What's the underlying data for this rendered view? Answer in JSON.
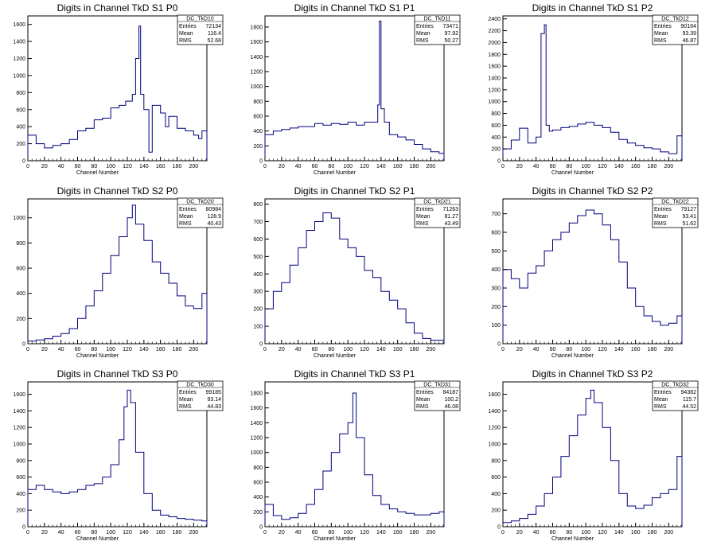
{
  "chart_data": [
    {
      "type": "histogram",
      "title": "Digits in Channel TkD S1 P0",
      "xlabel": "Channel Number",
      "ylabel": "",
      "stats": {
        "name": "DC_TkD10",
        "entries": "72134",
        "mean": "116.4",
        "rms": "52.68"
      },
      "xlim": [
        0,
        216
      ],
      "ylim": [
        0,
        1700
      ],
      "xticks": [
        "0",
        "20",
        "40",
        "60",
        "80",
        "100",
        "120",
        "140",
        "160",
        "180",
        "200"
      ],
      "yticks": [
        "0",
        "200",
        "400",
        "600",
        "800",
        "1000",
        "1200",
        "1400",
        "1600"
      ],
      "x": [
        0,
        10,
        20,
        30,
        40,
        50,
        60,
        70,
        80,
        90,
        100,
        110,
        118,
        126,
        130,
        134,
        136,
        140,
        146,
        150,
        160,
        166,
        170,
        180,
        190,
        200,
        206,
        210,
        216
      ],
      "y": [
        300,
        200,
        150,
        180,
        200,
        250,
        350,
        380,
        480,
        500,
        620,
        650,
        700,
        780,
        1200,
        1580,
        780,
        600,
        100,
        650,
        560,
        400,
        520,
        380,
        350,
        300,
        260,
        350,
        0
      ]
    },
    {
      "type": "histogram",
      "title": "Digits in Channel TkD S1 P1",
      "xlabel": "Channel Number",
      "ylabel": "",
      "stats": {
        "name": "DC_TkD11",
        "entries": "73471",
        "mean": "97.92",
        "rms": "50.27"
      },
      "xlim": [
        0,
        216
      ],
      "ylim": [
        0,
        1950
      ],
      "xticks": [
        "0",
        "20",
        "40",
        "60",
        "80",
        "100",
        "120",
        "140",
        "160",
        "180",
        "200"
      ],
      "yticks": [
        "0",
        "200",
        "400",
        "600",
        "800",
        "1000",
        "1200",
        "1400",
        "1600",
        "1800"
      ],
      "x": [
        0,
        10,
        20,
        30,
        40,
        50,
        60,
        70,
        80,
        90,
        100,
        110,
        120,
        130,
        136,
        138,
        140,
        144,
        150,
        160,
        170,
        180,
        190,
        200,
        210,
        216
      ],
      "y": [
        350,
        400,
        420,
        440,
        460,
        460,
        500,
        480,
        500,
        490,
        520,
        480,
        520,
        520,
        750,
        1880,
        700,
        520,
        350,
        320,
        280,
        220,
        160,
        120,
        100,
        0
      ]
    },
    {
      "type": "histogram",
      "title": "Digits in Channel TkD S1 P2",
      "xlabel": "Channel Number",
      "ylabel": "",
      "stats": {
        "name": "DC_TkD12",
        "entries": "90164",
        "mean": "93.39",
        "rms": "46.87"
      },
      "xlim": [
        0,
        216
      ],
      "ylim": [
        0,
        2450
      ],
      "xticks": [
        "0",
        "20",
        "40",
        "60",
        "80",
        "100",
        "120",
        "140",
        "160",
        "180",
        "200"
      ],
      "yticks": [
        "0",
        "200",
        "400",
        "600",
        "800",
        "1000",
        "1200",
        "1400",
        "1600",
        "1800",
        "2000",
        "2200",
        "2400"
      ],
      "x": [
        0,
        10,
        20,
        30,
        40,
        46,
        50,
        52,
        56,
        60,
        70,
        80,
        90,
        100,
        110,
        120,
        130,
        140,
        150,
        160,
        170,
        180,
        190,
        200,
        210,
        216
      ],
      "y": [
        200,
        350,
        550,
        300,
        400,
        2150,
        2300,
        600,
        500,
        520,
        560,
        580,
        620,
        650,
        600,
        560,
        480,
        360,
        300,
        260,
        220,
        200,
        150,
        120,
        420,
        0
      ]
    },
    {
      "type": "histogram",
      "title": "Digits in Channel TkD S2 P0",
      "xlabel": "Channel Number",
      "ylabel": "",
      "stats": {
        "name": "DC_TkD20",
        "entries": "80984",
        "mean": "128.9",
        "rms": "40.43"
      },
      "xlim": [
        0,
        216
      ],
      "ylim": [
        0,
        1150
      ],
      "xticks": [
        "0",
        "20",
        "40",
        "60",
        "80",
        "100",
        "120",
        "140",
        "160",
        "180",
        "200"
      ],
      "yticks": [
        "0",
        "200",
        "400",
        "600",
        "800",
        "1000"
      ],
      "x": [
        0,
        10,
        20,
        30,
        40,
        50,
        60,
        70,
        80,
        90,
        100,
        110,
        120,
        126,
        130,
        140,
        150,
        160,
        170,
        180,
        190,
        200,
        210,
        216
      ],
      "y": [
        20,
        30,
        40,
        60,
        80,
        120,
        200,
        300,
        420,
        560,
        700,
        850,
        1000,
        1100,
        950,
        820,
        650,
        560,
        480,
        380,
        300,
        280,
        400,
        0
      ]
    },
    {
      "type": "histogram",
      "title": "Digits in Channel TkD S2 P1",
      "xlabel": "Channel Number",
      "ylabel": "",
      "stats": {
        "name": "DC_TkD21",
        "entries": "71263",
        "mean": "81.27",
        "rms": "43.49"
      },
      "xlim": [
        0,
        216
      ],
      "ylim": [
        0,
        830
      ],
      "xticks": [
        "0",
        "20",
        "40",
        "60",
        "80",
        "100",
        "120",
        "140",
        "160",
        "180",
        "200"
      ],
      "yticks": [
        "0",
        "100",
        "200",
        "300",
        "400",
        "500",
        "600",
        "700",
        "800"
      ],
      "x": [
        0,
        10,
        20,
        30,
        40,
        50,
        60,
        70,
        80,
        90,
        100,
        110,
        120,
        130,
        140,
        150,
        160,
        170,
        180,
        190,
        200,
        216
      ],
      "y": [
        200,
        300,
        350,
        450,
        550,
        650,
        700,
        750,
        720,
        600,
        550,
        500,
        420,
        380,
        300,
        250,
        200,
        120,
        60,
        30,
        20,
        0
      ]
    },
    {
      "type": "histogram",
      "title": "Digits in Channel TkD S2 P2",
      "xlabel": "Channel Number",
      "ylabel": "",
      "stats": {
        "name": "DC_TkD22",
        "entries": "79127",
        "mean": "93.41",
        "rms": "51.62"
      },
      "xlim": [
        0,
        216
      ],
      "ylim": [
        0,
        780
      ],
      "xticks": [
        "0",
        "20",
        "40",
        "60",
        "80",
        "100",
        "120",
        "140",
        "160",
        "180",
        "200"
      ],
      "yticks": [
        "0",
        "100",
        "200",
        "300",
        "400",
        "500",
        "600",
        "700"
      ],
      "x": [
        0,
        10,
        20,
        30,
        40,
        50,
        60,
        70,
        80,
        90,
        100,
        110,
        120,
        130,
        140,
        150,
        160,
        170,
        180,
        190,
        200,
        210,
        216
      ],
      "y": [
        400,
        350,
        300,
        380,
        420,
        500,
        560,
        600,
        650,
        690,
        720,
        700,
        640,
        560,
        440,
        300,
        200,
        150,
        120,
        100,
        110,
        150,
        0
      ]
    },
    {
      "type": "histogram",
      "title": "Digits in Channel TkD S3 P0",
      "xlabel": "Channel Number",
      "ylabel": "",
      "stats": {
        "name": "DC_TkD30",
        "entries": "99185",
        "mean": "93.14",
        "rms": "44.83"
      },
      "xlim": [
        0,
        216
      ],
      "ylim": [
        0,
        1750
      ],
      "xticks": [
        "0",
        "20",
        "40",
        "60",
        "80",
        "100",
        "120",
        "140",
        "160",
        "180",
        "200"
      ],
      "yticks": [
        "0",
        "200",
        "400",
        "600",
        "800",
        "1000",
        "1200",
        "1400",
        "1600"
      ],
      "x": [
        0,
        10,
        20,
        30,
        40,
        50,
        60,
        70,
        80,
        90,
        100,
        110,
        116,
        120,
        124,
        130,
        140,
        150,
        160,
        170,
        180,
        190,
        200,
        210,
        216
      ],
      "y": [
        450,
        500,
        450,
        420,
        400,
        420,
        450,
        500,
        520,
        600,
        750,
        1050,
        1450,
        1650,
        1500,
        900,
        400,
        200,
        140,
        120,
        100,
        90,
        80,
        70,
        0
      ]
    },
    {
      "type": "histogram",
      "title": "Digits in Channel TkD S3 P1",
      "xlabel": "Channel Number",
      "ylabel": "",
      "stats": {
        "name": "DC_TkD31",
        "entries": "84187",
        "mean": "100.2",
        "rms": "46.08"
      },
      "xlim": [
        0,
        216
      ],
      "ylim": [
        0,
        1950
      ],
      "xticks": [
        "0",
        "20",
        "40",
        "60",
        "80",
        "100",
        "120",
        "140",
        "160",
        "180",
        "200"
      ],
      "yticks": [
        "0",
        "200",
        "400",
        "600",
        "800",
        "1000",
        "1200",
        "1400",
        "1600",
        "1800"
      ],
      "x": [
        0,
        10,
        20,
        30,
        40,
        50,
        60,
        70,
        80,
        90,
        100,
        106,
        110,
        120,
        130,
        140,
        150,
        160,
        170,
        180,
        190,
        200,
        210,
        216
      ],
      "y": [
        300,
        150,
        100,
        120,
        180,
        300,
        500,
        750,
        1000,
        1250,
        1400,
        1800,
        1200,
        700,
        420,
        300,
        240,
        200,
        180,
        160,
        160,
        180,
        200,
        0
      ]
    },
    {
      "type": "histogram",
      "title": "Digits in Channel TkD S3 P2",
      "xlabel": "Channel Number",
      "ylabel": "",
      "stats": {
        "name": "DC_TkD32",
        "entries": "94382",
        "mean": "115.7",
        "rms": "44.52"
      },
      "xlim": [
        0,
        216
      ],
      "ylim": [
        0,
        1750
      ],
      "xticks": [
        "0",
        "20",
        "40",
        "60",
        "80",
        "100",
        "120",
        "140",
        "160",
        "180",
        "200"
      ],
      "yticks": [
        "0",
        "200",
        "400",
        "600",
        "800",
        "1000",
        "1200",
        "1400",
        "1600"
      ],
      "x": [
        0,
        10,
        20,
        30,
        40,
        50,
        60,
        70,
        80,
        90,
        100,
        106,
        110,
        120,
        130,
        140,
        150,
        160,
        170,
        180,
        190,
        200,
        210,
        216
      ],
      "y": [
        50,
        70,
        100,
        150,
        250,
        400,
        600,
        850,
        1100,
        1350,
        1550,
        1650,
        1500,
        1200,
        800,
        400,
        250,
        220,
        260,
        350,
        400,
        450,
        850,
        0
      ]
    }
  ],
  "labels": {
    "entries": "Entries",
    "mean": "Mean",
    "rms": "RMS"
  },
  "colors": {
    "line": "#00007f",
    "axis": "#000000",
    "background": "#ffffff"
  }
}
